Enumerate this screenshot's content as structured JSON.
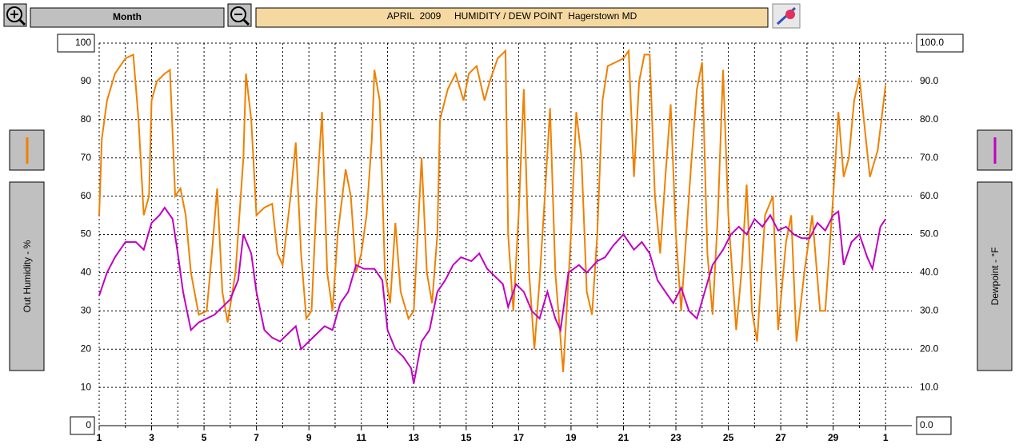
{
  "chart_data": {
    "type": "line",
    "title": "APRIL  2009     HUMIDITY / DEW POINT  Hagerstown MD",
    "period": "Month",
    "ylabel": "Out Humidity - %",
    "y2label": "Dewpoint - °F",
    "xlim": [
      1,
      32
    ],
    "xticks": [
      1,
      3,
      5,
      7,
      9,
      11,
      13,
      15,
      17,
      19,
      21,
      23,
      25,
      27,
      29,
      {
        "value": 31,
        "label": "1"
      }
    ],
    "x_minor_ticks": [
      2,
      4,
      6,
      8,
      10,
      12,
      14,
      16,
      18,
      20,
      22,
      24,
      26,
      28,
      30
    ],
    "ylim": [
      0,
      100
    ],
    "yticks": [
      0,
      10,
      20,
      30,
      40,
      50,
      60,
      70,
      80,
      90,
      100
    ],
    "y2lim": [
      0,
      100
    ],
    "y2ticks": [
      {
        "value": 0,
        "label": "0.0"
      },
      {
        "value": 10,
        "label": "10.0"
      },
      {
        "value": 20,
        "label": "20.0"
      },
      {
        "value": 30,
        "label": "30.0"
      },
      {
        "value": 40,
        "label": "40.0"
      },
      {
        "value": 50,
        "label": "50.0"
      },
      {
        "value": 60,
        "label": "60.0"
      },
      {
        "value": 70,
        "label": "70.0"
      },
      {
        "value": 80,
        "label": "80.0"
      },
      {
        "value": 90,
        "label": "90.0"
      },
      {
        "value": 100,
        "label": "100.0"
      }
    ],
    "grid": true,
    "series": [
      {
        "name": "Out Humidity",
        "color": "#f08000",
        "axis": "y",
        "x": [
          1.0,
          1.1,
          1.3,
          1.6,
          2.0,
          2.3,
          2.5,
          2.7,
          2.9,
          3.0,
          3.2,
          3.5,
          3.7,
          3.9,
          4.1,
          4.3,
          4.5,
          4.8,
          5.1,
          5.3,
          5.5,
          5.7,
          5.9,
          6.2,
          6.5,
          6.6,
          6.8,
          7.0,
          7.3,
          7.6,
          7.8,
          8.0,
          8.3,
          8.5,
          8.7,
          8.9,
          9.1,
          9.3,
          9.5,
          9.7,
          9.9,
          10.1,
          10.4,
          10.6,
          10.8,
          11.0,
          11.2,
          11.4,
          11.5,
          11.7,
          11.9,
          12.1,
          12.3,
          12.5,
          12.8,
          13.0,
          13.3,
          13.5,
          13.7,
          13.9,
          14.0,
          14.3,
          14.6,
          14.9,
          15.1,
          15.4,
          15.7,
          15.9,
          16.2,
          16.5,
          16.6,
          16.8,
          17.0,
          17.2,
          17.4,
          17.6,
          17.8,
          18.0,
          18.2,
          18.4,
          18.7,
          19.0,
          19.2,
          19.4,
          19.6,
          19.8,
          20.0,
          20.2,
          20.4,
          20.7,
          21.0,
          21.2,
          21.4,
          21.6,
          21.8,
          22.0,
          22.2,
          22.4,
          22.6,
          22.8,
          23.0,
          23.2,
          23.4,
          23.6,
          23.8,
          24.0,
          24.2,
          24.4,
          24.6,
          24.8,
          25.0,
          25.3,
          25.5,
          25.7,
          25.9,
          26.1,
          26.4,
          26.7,
          26.9,
          27.2,
          27.4,
          27.6,
          27.9,
          28.2,
          28.5,
          28.7,
          29.0,
          29.2,
          29.4,
          29.6,
          29.8,
          30.0,
          30.2,
          30.4,
          30.7,
          31.0
        ],
        "values": [
          55,
          75,
          85,
          92,
          96,
          97,
          80,
          55,
          60,
          85,
          90,
          92,
          93,
          60,
          62,
          55,
          40,
          29,
          30,
          45,
          62,
          35,
          27,
          40,
          70,
          92,
          80,
          55,
          57,
          58,
          45,
          42,
          60,
          74,
          45,
          28,
          30,
          60,
          82,
          40,
          30,
          50,
          67,
          60,
          40,
          45,
          55,
          75,
          93,
          85,
          40,
          32,
          53,
          35,
          28,
          30,
          70,
          40,
          32,
          50,
          80,
          88,
          92,
          85,
          92,
          94,
          85,
          90,
          96,
          98,
          50,
          30,
          55,
          88,
          40,
          20,
          38,
          60,
          83,
          40,
          14,
          50,
          82,
          70,
          35,
          29,
          50,
          85,
          94,
          95,
          96,
          98,
          65,
          90,
          97,
          97,
          60,
          45,
          65,
          84,
          50,
          30,
          50,
          70,
          88,
          95,
          45,
          29,
          55,
          93,
          55,
          25,
          40,
          63,
          30,
          22,
          55,
          60,
          25,
          48,
          55,
          22,
          40,
          55,
          30,
          30,
          60,
          82,
          65,
          70,
          85,
          91,
          78,
          65,
          72,
          89
        ]
      },
      {
        "name": "Dewpoint",
        "color": "#c000c0",
        "axis": "y2",
        "x": [
          1.0,
          1.3,
          1.6,
          2.0,
          2.4,
          2.7,
          3.0,
          3.3,
          3.5,
          3.8,
          4.0,
          4.2,
          4.5,
          4.8,
          5.1,
          5.4,
          5.7,
          6.0,
          6.3,
          6.5,
          6.8,
          7.0,
          7.3,
          7.6,
          7.9,
          8.2,
          8.5,
          8.7,
          9.0,
          9.3,
          9.6,
          9.9,
          10.2,
          10.5,
          10.8,
          11.1,
          11.5,
          11.8,
          12.0,
          12.3,
          12.6,
          12.9,
          13.0,
          13.3,
          13.6,
          13.9,
          14.2,
          14.5,
          14.8,
          15.2,
          15.5,
          15.8,
          16.1,
          16.4,
          16.6,
          16.9,
          17.2,
          17.5,
          17.8,
          18.1,
          18.4,
          18.6,
          18.9,
          19.3,
          19.6,
          20.0,
          20.3,
          20.6,
          21.0,
          21.4,
          21.7,
          22.0,
          22.3,
          22.6,
          22.9,
          23.2,
          23.5,
          23.8,
          24.1,
          24.4,
          24.8,
          25.1,
          25.4,
          25.7,
          26.0,
          26.3,
          26.6,
          26.9,
          27.2,
          27.5,
          27.8,
          28.1,
          28.4,
          28.7,
          29.0,
          29.2,
          29.4,
          29.7,
          30.0,
          30.3,
          30.5,
          30.8,
          31.0
        ],
        "values": [
          34,
          40,
          44,
          48,
          48,
          46,
          53,
          55,
          57,
          54,
          45,
          35,
          25,
          27,
          28,
          29,
          31,
          33,
          38,
          50,
          45,
          35,
          25,
          23,
          22,
          24,
          26,
          20,
          22,
          24,
          26,
          25,
          32,
          35,
          42,
          41,
          41,
          38,
          25,
          20,
          18,
          15,
          11,
          22,
          25,
          35,
          38,
          42,
          44,
          43,
          45,
          41,
          39,
          37,
          31,
          37,
          35,
          30,
          28,
          35,
          28,
          25,
          40,
          42,
          40,
          43,
          44,
          47,
          50,
          46,
          48,
          45,
          38,
          35,
          32,
          36,
          30,
          28,
          35,
          42,
          46,
          50,
          52,
          50,
          54,
          52,
          55,
          51,
          52,
          50,
          49,
          49,
          53,
          51,
          55,
          56,
          42,
          48,
          50,
          44,
          41,
          52,
          54
        ]
      }
    ]
  }
}
